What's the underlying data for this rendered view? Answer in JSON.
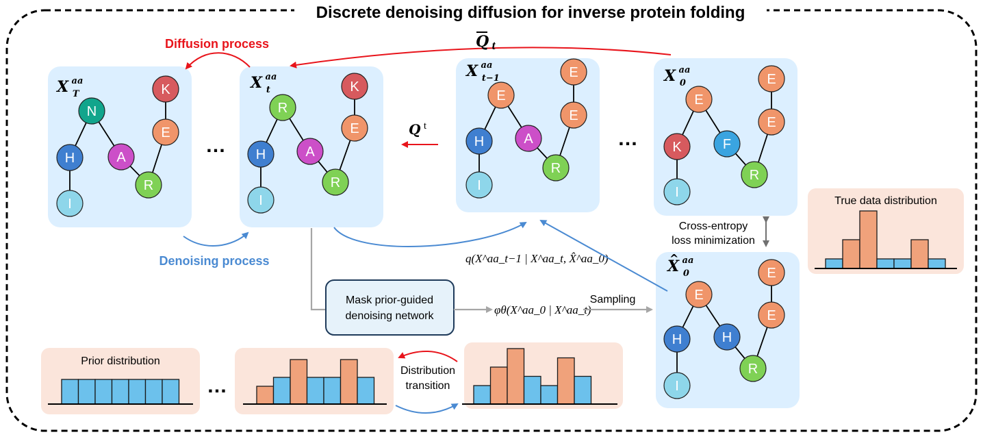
{
  "title": "Discrete denoising diffusion for inverse protein folding",
  "labels": {
    "diffusion_process": "Diffusion process",
    "denoising_process": "Denoising process",
    "mask_network_line1": "Mask prior-guided",
    "mask_network_line2": "denoising network",
    "sampling": "Sampling",
    "cross_entropy_line1": "Cross-entropy",
    "cross_entropy_line2": "loss minimization",
    "true_data_distribution": "True data distribution",
    "prior_distribution": "Prior distribution",
    "distribution_transition_line1": "Distribution",
    "distribution_transition_line2": "transition",
    "ellipsis": "…"
  },
  "math": {
    "q_bar": "Q",
    "q_bar_sub": "t",
    "q_t": "Q",
    "q_t_sup": "t",
    "posterior": "q(X^aa_t−1 | X^aa_t, X̂^aa_0)",
    "network_output": "φθ(X^aa_0 | X^aa_t)"
  },
  "panels": [
    {
      "id": "XT",
      "base": "X",
      "sup": "aa",
      "sub": "T",
      "hat": false
    },
    {
      "id": "Xt",
      "base": "X",
      "sup": "aa",
      "sub": "t",
      "hat": false
    },
    {
      "id": "Xt-1",
      "base": "X",
      "sup": "aa",
      "sub": "t−1",
      "hat": false
    },
    {
      "id": "X0",
      "base": "X",
      "sup": "aa",
      "sub": "0",
      "hat": false
    },
    {
      "id": "X0hat",
      "base": "X",
      "sup": "aa",
      "sub": "0",
      "hat": true
    }
  ],
  "residues": {
    "XT": [
      "I",
      "H",
      "N",
      "A",
      "R",
      "E",
      "K"
    ],
    "Xt": [
      "I",
      "H",
      "R",
      "A",
      "R",
      "E",
      "K"
    ],
    "Xt-1": [
      "I",
      "H",
      "E",
      "A",
      "R",
      "E",
      "E"
    ],
    "X0": [
      "I",
      "K",
      "E",
      "F",
      "R",
      "E",
      "E"
    ],
    "X0hat": [
      "I",
      "H",
      "E",
      "H",
      "R",
      "E",
      "E"
    ]
  },
  "colors": {
    "I": "#8ed6ea",
    "H": "#3f7fd0",
    "N": "#12a58c",
    "A": "#cc4fc8",
    "R": "#7fd155",
    "E": "#f0956a",
    "K": "#d75a5e",
    "F": "#3aa4e0",
    "panel_blue": "#dcefff",
    "panel_peach": "#fbe5db",
    "bar_blue": "#6cc1ec",
    "bar_orange": "#f0a27b",
    "red_arrow": "#e8141b",
    "blue_arrow": "#4a8ad2",
    "gray_arrow": "#a6a6a6",
    "network_box": "#e6f2fa"
  },
  "histograms": {
    "true_data": {
      "values": [
        1,
        3,
        6,
        1,
        1,
        3,
        1
      ],
      "highlight": [
        false,
        true,
        true,
        false,
        false,
        true,
        false
      ]
    },
    "prior": {
      "values": [
        3,
        3,
        3,
        3,
        3,
        3,
        3
      ],
      "highlight": [
        false,
        false,
        false,
        false,
        false,
        false,
        false
      ]
    },
    "intermediate": {
      "values": [
        2,
        3,
        5,
        3,
        3,
        5,
        3
      ],
      "highlight": [
        true,
        false,
        true,
        false,
        false,
        true,
        false
      ]
    },
    "near_data": {
      "values": [
        2,
        4,
        6,
        3,
        2,
        5,
        3
      ],
      "highlight": [
        false,
        true,
        true,
        false,
        false,
        true,
        false
      ]
    }
  }
}
